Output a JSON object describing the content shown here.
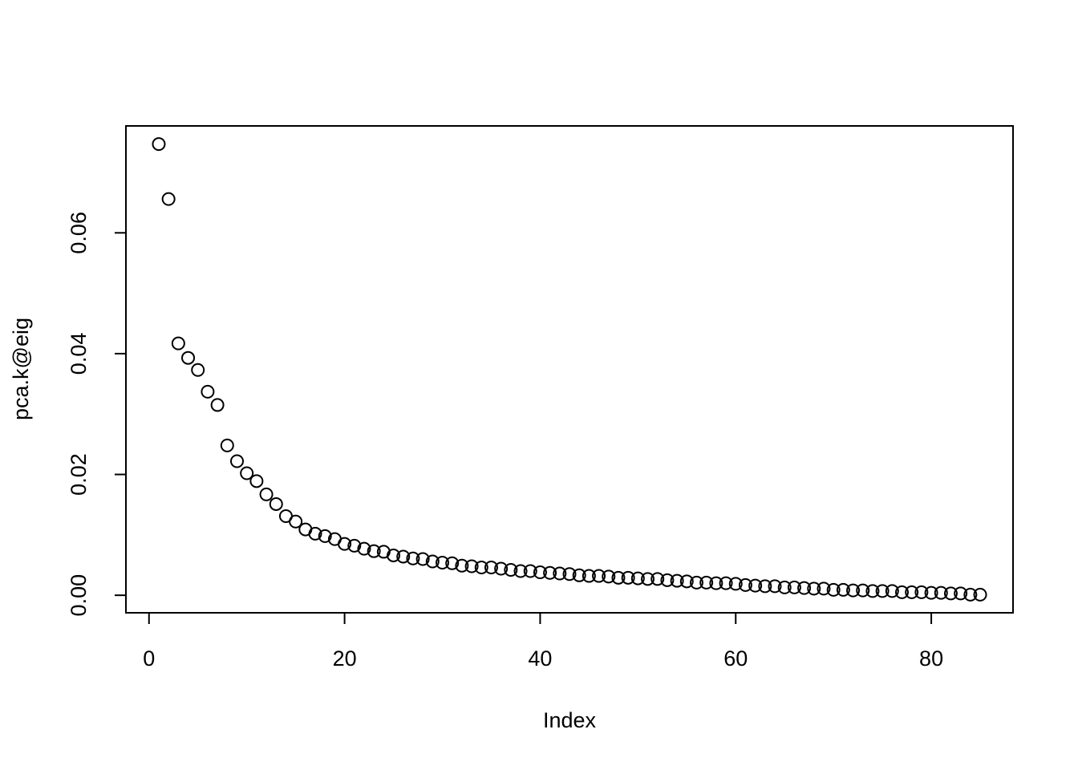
{
  "chart_data": {
    "type": "scatter",
    "x_label": "Index",
    "y_label": "pca.k@eig",
    "x": [
      1,
      2,
      3,
      4,
      5,
      6,
      7,
      8,
      9,
      10,
      11,
      12,
      13,
      14,
      15,
      16,
      17,
      18,
      19,
      20,
      21,
      22,
      23,
      24,
      25,
      26,
      27,
      28,
      29,
      30,
      31,
      32,
      33,
      34,
      35,
      36,
      37,
      38,
      39,
      40,
      41,
      42,
      43,
      44,
      45,
      46,
      47,
      48,
      49,
      50,
      51,
      52,
      53,
      54,
      55,
      56,
      57,
      58,
      59,
      60,
      61,
      62,
      63,
      64,
      65,
      66,
      67,
      68,
      69,
      70,
      71,
      72,
      73,
      74,
      75,
      76,
      77,
      78,
      79,
      80,
      81,
      82,
      83,
      84,
      85
    ],
    "values": [
      0.0747,
      0.0656,
      0.0417,
      0.0393,
      0.0373,
      0.0337,
      0.0315,
      0.0248,
      0.0222,
      0.0202,
      0.0189,
      0.0167,
      0.0151,
      0.0131,
      0.0122,
      0.0109,
      0.0102,
      0.0098,
      0.0093,
      0.0085,
      0.0082,
      0.0077,
      0.0073,
      0.0072,
      0.0066,
      0.0064,
      0.0061,
      0.006,
      0.0056,
      0.0054,
      0.0053,
      0.0049,
      0.0048,
      0.0046,
      0.0046,
      0.0044,
      0.0042,
      0.004,
      0.004,
      0.0038,
      0.0037,
      0.0036,
      0.0035,
      0.0033,
      0.0032,
      0.0032,
      0.0031,
      0.0029,
      0.0029,
      0.0028,
      0.0027,
      0.0027,
      0.0025,
      0.0024,
      0.0023,
      0.0021,
      0.0021,
      0.002,
      0.002,
      0.0019,
      0.0017,
      0.0016,
      0.0015,
      0.0015,
      0.0013,
      0.0013,
      0.0012,
      0.0011,
      0.0011,
      0.0009,
      0.0009,
      0.0008,
      0.0008,
      0.0007,
      0.0007,
      0.0007,
      0.0005,
      0.0005,
      0.0005,
      0.0004,
      0.0004,
      0.0003,
      0.0003,
      0.0001,
      0.0001
    ],
    "color": "#000000",
    "xlim": [
      -2.36,
      88.36
    ],
    "ylim": [
      -0.0029,
      0.0777
    ],
    "xticks": [
      0,
      20,
      40,
      60,
      80
    ],
    "yticks": [
      {
        "value": 0,
        "label": "0.00"
      },
      0.02,
      0.04,
      0.06
    ]
  }
}
